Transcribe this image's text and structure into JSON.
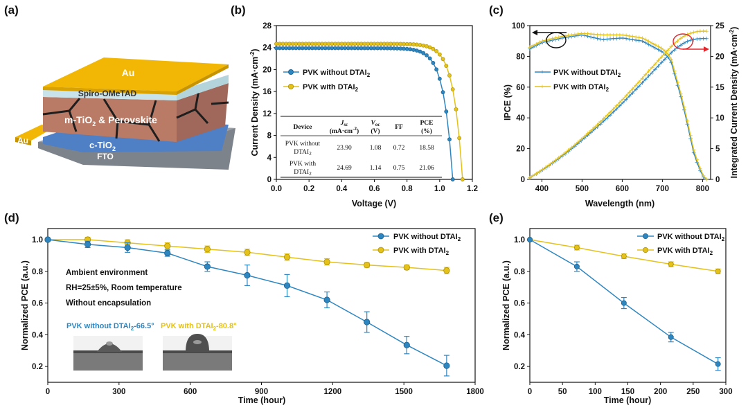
{
  "colors": {
    "blue": "#2E86C1",
    "yellow": "#E4C21A",
    "gold": "#F2B705",
    "spiro": "#C9E3EA",
    "perov": "#B97B66",
    "ctio2": "#4F7FC4",
    "fto": "#8A8F96",
    "red": "#E3262B"
  },
  "panel_a": {
    "label": "(a)",
    "layers": {
      "au_top": "Au",
      "spiro": "Spiro-OMeTAD",
      "perov_pre": "m-TiO",
      "perov_sub": "2",
      "perov_post": " & Perovskite",
      "ctio2_pre": "c-TiO",
      "ctio2_sub": "2",
      "fto": "FTO",
      "au_side": "Au"
    }
  },
  "chart_data": [
    {
      "id": "b",
      "label": "(b)",
      "type": "line",
      "xlabel": "Voltage (V)",
      "ylabel_pre": "Current Density (mA·cm",
      "ylabel_sup": "-2",
      "ylabel_post": ")",
      "xlim": [
        0,
        1.2
      ],
      "ylim": [
        0,
        28
      ],
      "xticks": [
        "0.0",
        "0.2",
        "0.4",
        "0.6",
        "0.8",
        "1.0",
        "1.2"
      ],
      "yticks": [
        "0",
        "4",
        "8",
        "12",
        "16",
        "20",
        "24",
        "28"
      ],
      "legend": {
        "without": "PVK without DTAI",
        "with": "PVK with DTAI",
        "sub": "2"
      },
      "series": [
        {
          "name": "PVK without DTAI2",
          "jsc": 23.9,
          "voc": 1.08
        },
        {
          "name": "PVK with DTAI2",
          "jsc": 24.69,
          "voc": 1.14
        }
      ],
      "table": {
        "headers": [
          "Device",
          "J",
          "sc",
          "(mA·cm",
          "-2",
          ")",
          "V",
          "oc",
          "(V)",
          "FF",
          "PCE",
          "(%)"
        ],
        "rows": [
          {
            "device_1": "PVK without",
            "device_2": "DTAI",
            "sub": "2",
            "jsc": "23.90",
            "voc": "1.08",
            "ff": "0.72",
            "pce": "18.58"
          },
          {
            "device_1": "PVK with",
            "device_2": "DTAI",
            "sub": "2",
            "jsc": "24.69",
            "voc": "1.14",
            "ff": "0.75",
            "pce": "21.06"
          }
        ]
      }
    },
    {
      "id": "c",
      "label": "(c)",
      "type": "line",
      "xlabel": "Wavelength (nm)",
      "ylabel": "IPCE (%)",
      "ylabel2_pre": "Integrated Current Density (mA·cm",
      "ylabel2_sup": "-2",
      "ylabel2_post": ")",
      "xlim": [
        370,
        820
      ],
      "ylim": [
        0,
        100
      ],
      "y2lim": [
        0,
        25
      ],
      "xticks": [
        "400",
        "500",
        "600",
        "700",
        "800"
      ],
      "yticks": [
        "0",
        "20",
        "40",
        "60",
        "80",
        "100"
      ],
      "y2ticks": [
        "0",
        "5",
        "10",
        "15",
        "20",
        "25"
      ],
      "legend": {
        "without": "PVK without DTAI",
        "with": "PVK with DTAI",
        "sub": "2"
      },
      "series": [
        {
          "name": "PVK without DTAI2",
          "ipce_x": [
            370,
            400,
            450,
            500,
            550,
            600,
            650,
            700,
            720,
            750,
            780,
            800,
            810
          ],
          "ipce_y": [
            85,
            89,
            92,
            94,
            91,
            92,
            90,
            83,
            78,
            50,
            15,
            2,
            0
          ],
          "jint_final": 22.9
        },
        {
          "name": "PVK with DTAI2",
          "ipce_x": [
            370,
            400,
            450,
            500,
            550,
            600,
            650,
            700,
            720,
            750,
            780,
            800,
            810
          ],
          "ipce_y": [
            86,
            90,
            93,
            95,
            94,
            94,
            92,
            85,
            80,
            52,
            17,
            3,
            0
          ],
          "jint_final": 24.1
        }
      ]
    },
    {
      "id": "d",
      "label": "(d)",
      "type": "line",
      "xlabel": "Time (hour)",
      "ylabel": "Normalized PCE (a.u.)",
      "xlim": [
        0,
        1800
      ],
      "ylim": [
        0.1,
        1.07
      ],
      "xticks": [
        "0",
        "300",
        "600",
        "900",
        "1200",
        "1500",
        "1800"
      ],
      "yticks": [
        "0.2",
        "0.4",
        "0.6",
        "0.8",
        "1.0"
      ],
      "legend": {
        "without": "PVK without DTAI",
        "with": "PVK with DTAI",
        "sub": "2"
      },
      "annotations": [
        "Ambient environment",
        "RH=25±5%, Room temperature",
        "Without encapsulation"
      ],
      "contact": {
        "without_pre": "PVK without DTAI",
        "without_post": "-66.5°",
        "with_pre": "PVK with DTAI",
        "with_post": "-80.8°",
        "sub": "2"
      },
      "series": [
        {
          "name": "PVK without DTAI2",
          "x": [
            0,
            168,
            336,
            504,
            672,
            840,
            1008,
            1176,
            1344,
            1512,
            1680
          ],
          "y": [
            1.0,
            0.97,
            0.95,
            0.915,
            0.83,
            0.775,
            0.71,
            0.62,
            0.48,
            0.335,
            0.205
          ],
          "err": [
            0,
            0.02,
            0.03,
            0.02,
            0.03,
            0.065,
            0.07,
            0.05,
            0.065,
            0.055,
            0.065
          ]
        },
        {
          "name": "PVK with DTAI2",
          "x": [
            0,
            168,
            336,
            504,
            672,
            840,
            1008,
            1176,
            1344,
            1512,
            1680
          ],
          "y": [
            1.0,
            1.0,
            0.98,
            0.96,
            0.94,
            0.92,
            0.89,
            0.86,
            0.84,
            0.825,
            0.805
          ],
          "err": [
            0,
            0.015,
            0.02,
            0.02,
            0.02,
            0.02,
            0.02,
            0.02,
            0.015,
            0.015,
            0.02
          ]
        }
      ]
    },
    {
      "id": "e",
      "label": "(e)",
      "type": "line",
      "xlabel": "Time (hour)",
      "ylabel": "Normalized PCE (a.u.)",
      "xlim": [
        0,
        300
      ],
      "ylim": [
        0.1,
        1.07
      ],
      "xticks": [
        "0",
        "50",
        "100",
        "150",
        "200",
        "250",
        "300"
      ],
      "yticks": [
        "0.2",
        "0.4",
        "0.6",
        "0.8",
        "1.0"
      ],
      "legend": {
        "without": "PVK without DTAI",
        "with": "PVK with DTAI",
        "sub": "2"
      },
      "series": [
        {
          "name": "PVK without DTAI2",
          "x": [
            0,
            72,
            144,
            216,
            288
          ],
          "y": [
            1.0,
            0.83,
            0.6,
            0.385,
            0.215
          ],
          "err": [
            0,
            0.03,
            0.035,
            0.03,
            0.04
          ]
        },
        {
          "name": "PVK with DTAI2",
          "x": [
            0,
            72,
            144,
            216,
            288
          ],
          "y": [
            1.0,
            0.95,
            0.895,
            0.845,
            0.8
          ],
          "err": [
            0,
            0.015,
            0.015,
            0.015,
            0.015
          ]
        }
      ]
    }
  ]
}
